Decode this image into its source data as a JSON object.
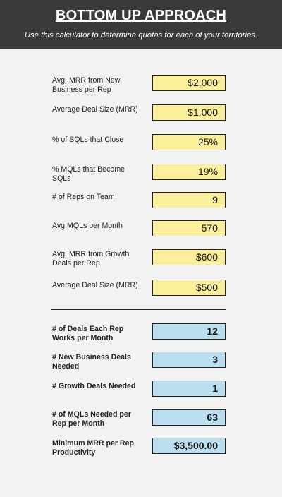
{
  "header": {
    "title": "BOTTOM UP APPROACH",
    "subtitle": "Use this calculator to determine quotas for each of your territories."
  },
  "inputs": [
    {
      "label": "Avg. MRR from New Business per Rep",
      "value": "$2,000"
    },
    {
      "label": "Average Deal Size (MRR)",
      "value": "$1,000"
    },
    {
      "label": "% of SQLs that Close",
      "value": "25%"
    },
    {
      "label": "% MQLs that Become SQLs",
      "value": "19%"
    },
    {
      "label": "# of Reps on Team",
      "value": "9"
    },
    {
      "label": "Avg MQLs per Month",
      "value": "570"
    },
    {
      "label": "Avg. MRR from Growth Deals per Rep",
      "value": "$600"
    },
    {
      "label": "Average Deal Size (MRR)",
      "value": "$500"
    }
  ],
  "outputs": [
    {
      "label": "# of Deals Each Rep Works per Month",
      "value": "12"
    },
    {
      "label": "# New Business Deals Needed",
      "value": "3"
    },
    {
      "label": "# Growth Deals Needed",
      "value": "1"
    },
    {
      "label": "# of MQLs Needed per Rep per Month",
      "value": "63"
    },
    {
      "label": "Minimum MRR per Rep Productivity",
      "value": "$3,500.00"
    }
  ],
  "colors": {
    "header_bg": "#3a3a3a",
    "input_fill": "#fcef9c",
    "output_fill": "#b9dff0"
  }
}
